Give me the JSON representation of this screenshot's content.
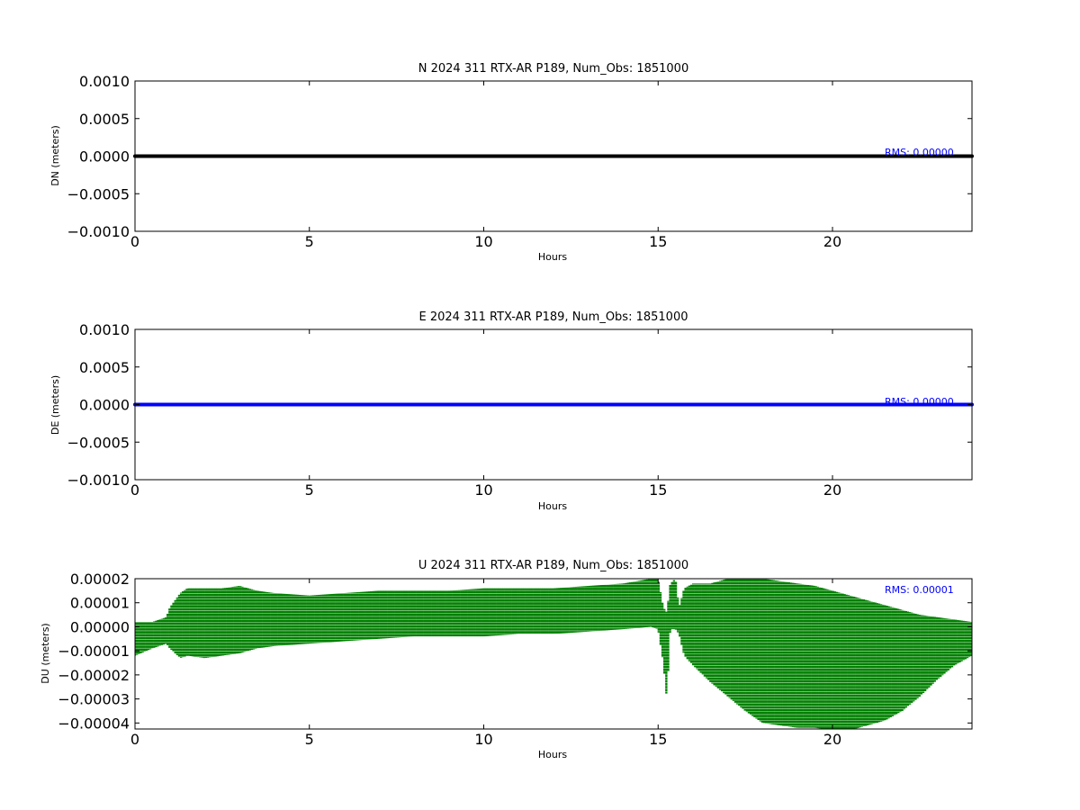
{
  "chart_data": [
    {
      "type": "scatter",
      "title": "N 2024 311 RTX-AR  P189, Num_Obs: 1851000",
      "xlabel": "Hours",
      "ylabel": "DN (meters)",
      "xlim": [
        0,
        24
      ],
      "ylim": [
        -0.001,
        0.001
      ],
      "xticks": [
        0,
        5,
        10,
        15,
        20
      ],
      "xtick_labels": [
        "0",
        "5",
        "10",
        "15",
        "20"
      ],
      "yticks": [
        0.001,
        0.0005,
        0.0,
        -0.0005,
        -0.001
      ],
      "ytick_labels": [
        "0.0010",
        "0.0005",
        "0.0000",
        "−0.0005",
        "−0.0010"
      ],
      "annotation": "RMS:  0.00000",
      "grid": false,
      "color": "#000000",
      "series": [
        {
          "x": [
            0,
            2,
            4,
            6,
            8,
            10,
            12,
            14,
            16,
            18,
            20,
            22,
            24
          ],
          "y": [
            0,
            0,
            0,
            0,
            0,
            0,
            0,
            0,
            0,
            0,
            0,
            0,
            0
          ]
        }
      ]
    },
    {
      "type": "scatter",
      "title": "E 2024 311 RTX-AR  P189, Num_Obs: 1851000",
      "xlabel": "Hours",
      "ylabel": "DE (meters)",
      "xlim": [
        0,
        24
      ],
      "ylim": [
        -0.001,
        0.001
      ],
      "xticks": [
        0,
        5,
        10,
        15,
        20
      ],
      "xtick_labels": [
        "0",
        "5",
        "10",
        "15",
        "20"
      ],
      "yticks": [
        0.001,
        0.0005,
        0.0,
        -0.0005,
        -0.001
      ],
      "ytick_labels": [
        "0.0010",
        "0.0005",
        "0.0000",
        "−0.0005",
        "−0.0010"
      ],
      "annotation": "RMS:  0.00000",
      "grid": false,
      "color": "#0000ff",
      "series": [
        {
          "x": [
            0,
            2,
            4,
            6,
            8,
            10,
            12,
            14,
            16,
            18,
            20,
            22,
            24
          ],
          "y": [
            0,
            0,
            0,
            0,
            0,
            0,
            0,
            0,
            0,
            0,
            0,
            0,
            0
          ]
        }
      ]
    },
    {
      "type": "scatter",
      "title": "U 2024 311 RTX-AR  P189, Num_Obs: 1851000",
      "xlabel": "Hours",
      "ylabel": "DU (meters)",
      "xlim": [
        0,
        24
      ],
      "ylim": [
        -4.25e-05,
        2e-05
      ],
      "xticks": [
        0,
        5,
        10,
        15,
        20
      ],
      "xtick_labels": [
        "0",
        "5",
        "10",
        "15",
        "20"
      ],
      "yticks": [
        2e-05,
        1e-05,
        0.0,
        -1e-05,
        -2e-05,
        -3e-05,
        -4e-05
      ],
      "ytick_labels": [
        "0.00002",
        "0.00001",
        "0.00000",
        "−0.00001",
        "−0.00002",
        "−0.00003",
        "−0.00004"
      ],
      "annotation": "RMS:  0.00001",
      "grid": false,
      "color": "#008000",
      "envelope": {
        "x": [
          0,
          0.5,
          0.9,
          1.0,
          1.3,
          1.5,
          2.0,
          2.5,
          3.0,
          3.5,
          4.0,
          5.0,
          6.0,
          7.0,
          8.0,
          9.0,
          10.0,
          11.0,
          12.0,
          13.0,
          14.0,
          14.8,
          15.0,
          15.15,
          15.25,
          15.35,
          15.5,
          15.6,
          15.75,
          16.0,
          16.5,
          17.0,
          17.5,
          18.0,
          18.5,
          19.0,
          19.5,
          20.0,
          20.5,
          21.0,
          21.5,
          22.0,
          22.5,
          23.0,
          23.5,
          24.0
        ],
        "upper": [
          2e-06,
          2e-06,
          4e-06,
          8e-06,
          1.4e-05,
          1.6e-05,
          1.6e-05,
          1.6e-05,
          1.7e-05,
          1.5e-05,
          1.4e-05,
          1.3e-05,
          1.4e-05,
          1.5e-05,
          1.5e-05,
          1.5e-05,
          1.6e-05,
          1.6e-05,
          1.6e-05,
          1.7e-05,
          1.8e-05,
          2e-05,
          2e-05,
          8e-06,
          6e-06,
          1.8e-05,
          2e-05,
          8e-06,
          1.6e-05,
          1.8e-05,
          1.8e-05,
          2e-05,
          2e-05,
          2e-05,
          1.9e-05,
          1.8e-05,
          1.7e-05,
          1.5e-05,
          1.3e-05,
          1.1e-05,
          9e-06,
          7e-06,
          5e-06,
          4e-06,
          3e-06,
          2e-06
        ],
        "lower": [
          -1.2e-05,
          -9e-06,
          -7e-06,
          -9e-06,
          -1.3e-05,
          -1.2e-05,
          -1.3e-05,
          -1.2e-05,
          -1.1e-05,
          -9e-06,
          -8e-06,
          -7e-06,
          -6e-06,
          -5e-06,
          -4e-06,
          -4e-06,
          -4e-06,
          -3e-06,
          -3e-06,
          -2e-06,
          -1e-06,
          0.0,
          -1e-06,
          -1.5e-05,
          -3e-05,
          -1e-06,
          -1e-06,
          -3e-06,
          -1.2e-05,
          -1.6e-05,
          -2.3e-05,
          -2.9e-05,
          -3.5e-05,
          -4e-05,
          -4.1e-05,
          -4.2e-05,
          -4.2e-05,
          -4.3e-05,
          -4.3e-05,
          -4.1e-05,
          -3.9e-05,
          -3.5e-05,
          -2.9e-05,
          -2.2e-05,
          -1.6e-05,
          -1.2e-05
        ]
      }
    }
  ]
}
